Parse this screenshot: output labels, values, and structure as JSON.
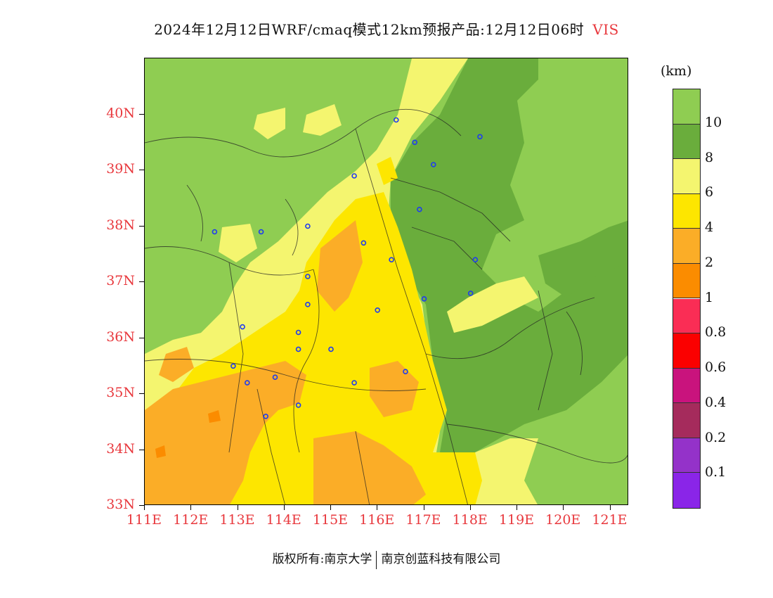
{
  "title": {
    "text": "2024年12月12日WRF/cmaq模式12km预报产品:12月12日06时",
    "variable": "VIS"
  },
  "map": {
    "lat_range": [
      33,
      41
    ],
    "lon_range": [
      111,
      121.4
    ],
    "colors": {
      "gt10": "#8fcd52",
      "8to10": "#6aad3c",
      "6to8": "#f4f56f",
      "4to6": "#fde600",
      "2to4": "#fbad27",
      "1to2": "#fb8c00"
    }
  },
  "y_ticks": [
    "40N",
    "39N",
    "38N",
    "37N",
    "36N",
    "35N",
    "34N",
    "33N"
  ],
  "x_ticks": [
    "111E",
    "112E",
    "113E",
    "114E",
    "115E",
    "116E",
    "117E",
    "118E",
    "119E",
    "120E",
    "121E"
  ],
  "colorbar": {
    "unit": "(km)",
    "colors": [
      "#8fcd52",
      "#6aad3c",
      "#f4f56f",
      "#fde600",
      "#fbad27",
      "#fb8c00",
      "#fa2d55",
      "#fb0000",
      "#c9137d",
      "#a52b5c",
      "#9432c9",
      "#8a25e8"
    ],
    "labels": [
      "10",
      "8",
      "6",
      "4",
      "2",
      "1",
      "0.8",
      "0.6",
      "0.4",
      "0.2",
      "0.1"
    ]
  },
  "credit": {
    "left": "版权所有:南京大学",
    "right": "南京创蓝科技有限公司"
  },
  "city_markers": [
    [
      116.4,
      39.9
    ],
    [
      117.2,
      39.1
    ],
    [
      118.2,
      39.6
    ],
    [
      116.8,
      39.5
    ],
    [
      115.5,
      38.9
    ],
    [
      114.5,
      38.0
    ],
    [
      116.9,
      38.3
    ],
    [
      115.7,
      37.7
    ],
    [
      116.3,
      37.4
    ],
    [
      112.5,
      37.9
    ],
    [
      113.5,
      37.9
    ],
    [
      117.0,
      36.7
    ],
    [
      118.1,
      37.4
    ],
    [
      118.0,
      36.8
    ],
    [
      114.5,
      37.1
    ],
    [
      114.5,
      36.6
    ],
    [
      116.0,
      36.5
    ],
    [
      113.1,
      36.2
    ],
    [
      114.3,
      36.1
    ],
    [
      114.3,
      35.8
    ],
    [
      115.0,
      35.8
    ],
    [
      112.9,
      35.5
    ],
    [
      113.2,
      35.2
    ],
    [
      113.8,
      35.3
    ],
    [
      115.5,
      35.2
    ],
    [
      116.6,
      35.4
    ],
    [
      114.3,
      34.8
    ],
    [
      113.6,
      34.6
    ]
  ]
}
